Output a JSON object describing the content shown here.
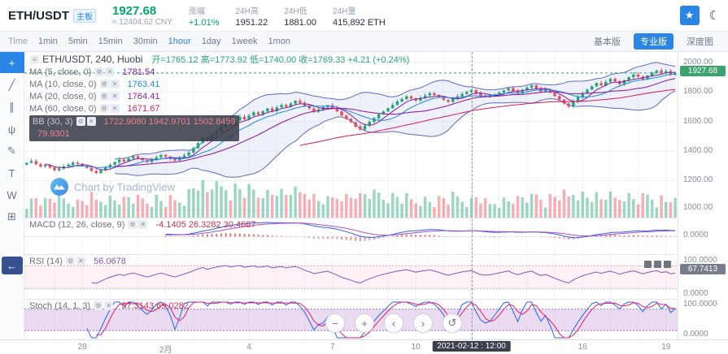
{
  "header": {
    "pair": "ETH/USDT",
    "board_badge": "主板",
    "price": "1927.68",
    "price_cny": "≈ 12404.62 CNY",
    "stats": [
      {
        "label": "涨幅",
        "value": "+1.01%"
      },
      {
        "label": "24H高",
        "value": "1951.22"
      },
      {
        "label": "24H低",
        "value": "1881.00"
      },
      {
        "label": "24H量",
        "value": "415,892 ETH"
      }
    ],
    "star_icon": "★",
    "moon_icon": "☾"
  },
  "toolbar": {
    "time_label": "Time",
    "intervals": [
      "1min",
      "5min",
      "15min",
      "30min",
      "1hour",
      "1day",
      "1week",
      "1mon"
    ],
    "active_interval": "1hour",
    "view_tabs": [
      "基本版",
      "专业版",
      "深度图"
    ],
    "active_view": "专业版"
  },
  "legend": {
    "title": "ETH/USDT, 240, Huobi",
    "ohlc": "开=1765.12  高=1773.92  低=1740.00  收=1769.33  +4.21 (+0.24%)",
    "rows": [
      {
        "label": "MA (5, close, 0)",
        "value": "1781.54"
      },
      {
        "label": "MA (10, close, 0)",
        "value": "1763.41"
      },
      {
        "label": "MA (20, close, 0)",
        "value": "1764.41"
      },
      {
        "label": "MA (60, close, 0)",
        "value": "1671.67"
      }
    ],
    "bb_label": "BB (30, 3)",
    "bb_values": "1722.9080  1942.9701  1502.8459",
    "partial_value": "79.9301"
  },
  "watermark_text": "Chart by TradingView",
  "panes": {
    "macd": {
      "label": "MACD (12, 26, close, 9)",
      "values": "-4.1405  26.3282  30.4687",
      "tick_zero": "0.0000"
    },
    "rsi": {
      "label": "RSI (14)",
      "value": "56.0678",
      "badge": "67.7413",
      "tick_top": "100.0000",
      "tick_bottom": "0.0000"
    },
    "stoch": {
      "label": "Stoch (14, 1, 3)",
      "values": "57.3143  69.0282",
      "tick_top": "100.0000",
      "tick_bottom": "0.0000"
    }
  },
  "price_axis": {
    "ticks": [
      "2000.00",
      "1800.00",
      "1600.00",
      "1400.00",
      "1200.00",
      "1000.00"
    ],
    "current": "1927.68"
  },
  "time_axis": {
    "labels": [
      {
        "text": "28",
        "idx": 12
      },
      {
        "text": "2月",
        "idx": 30
      },
      {
        "text": "4",
        "idx": 48
      },
      {
        "text": "7",
        "idx": 66
      },
      {
        "text": "10",
        "idx": 84
      },
      {
        "text": "16",
        "idx": 120
      },
      {
        "text": "19",
        "idx": 138
      }
    ],
    "crosshair_badge": "2021-02-12 : 12:00",
    "crosshair_idx": 96
  },
  "controls": {
    "zoom_out": "−",
    "zoom_in": "+",
    "pan_left": "‹",
    "pan_right": "›",
    "reset": "↺"
  },
  "chart_data": {
    "type": "candlestick",
    "symbol": "ETH/USDT",
    "interval": "240",
    "exchange": "Huobi",
    "price_range": [
      950,
      2070
    ],
    "grid_prices": [
      1000,
      1200,
      1400,
      1600,
      1800,
      2000
    ],
    "last_price": 1927.68,
    "closes": [
      1320,
      1332,
      1310,
      1295,
      1305,
      1288,
      1270,
      1282,
      1296,
      1308,
      1322,
      1314,
      1300,
      1286,
      1265,
      1252,
      1270,
      1290,
      1308,
      1325,
      1342,
      1330,
      1350,
      1365,
      1352,
      1338,
      1326,
      1340,
      1358,
      1372,
      1362,
      1348,
      1336,
      1352,
      1370,
      1390,
      1420,
      1455,
      1490,
      1472,
      1505,
      1535,
      1562,
      1590,
      1575,
      1605,
      1632,
      1615,
      1640,
      1662,
      1648,
      1670,
      1688,
      1672,
      1695,
      1712,
      1700,
      1722,
      1740,
      1725,
      1705,
      1688,
      1668,
      1682,
      1698,
      1710,
      1692,
      1668,
      1640,
      1618,
      1595,
      1565,
      1545,
      1572,
      1598,
      1622,
      1648,
      1668,
      1690,
      1712,
      1735,
      1752,
      1770,
      1756,
      1742,
      1760,
      1776,
      1790,
      1778,
      1764,
      1746,
      1732,
      1752,
      1770,
      1786,
      1800,
      1812,
      1790,
      1772,
      1765,
      1769,
      1782,
      1796,
      1810,
      1825,
      1806,
      1792,
      1812,
      1830,
      1845,
      1822,
      1802,
      1815,
      1795,
      1772,
      1748,
      1722,
      1702,
      1735,
      1765,
      1792,
      1815,
      1838,
      1860,
      1844,
      1868,
      1888,
      1872,
      1852,
      1878,
      1900,
      1918,
      1902,
      1884,
      1908,
      1930,
      1945,
      1926,
      1940,
      1918,
      1927.68
    ]
  }
}
